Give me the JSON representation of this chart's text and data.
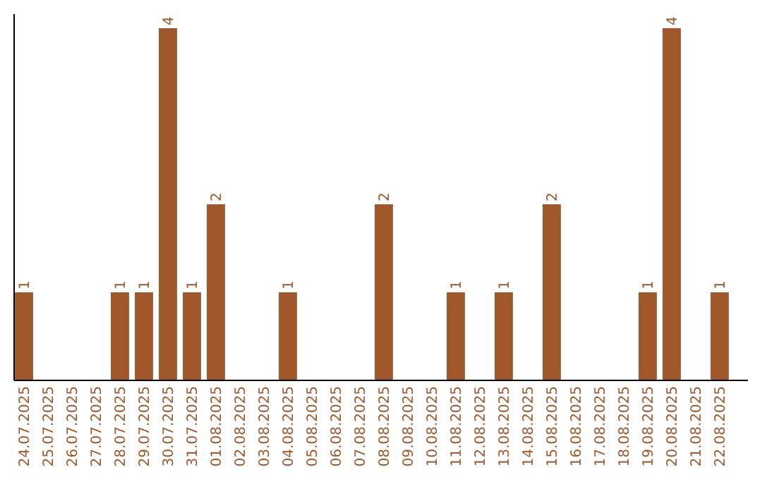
{
  "chart_data": {
    "type": "bar",
    "categories": [
      "24.07.2025",
      "25.07.2025",
      "26.07.2025",
      "27.07.2025",
      "28.07.2025",
      "29.07.2025",
      "30.07.2025",
      "31.07.2025",
      "01.08.2025",
      "02.08.2025",
      "03.08.2025",
      "04.08.2025",
      "05.08.2025",
      "06.08.2025",
      "07.08.2025",
      "08.08.2025",
      "09.08.2025",
      "10.08.2025",
      "11.08.2025",
      "12.08.2025",
      "13.08.2025",
      "14.08.2025",
      "15.08.2025",
      "16.08.2025",
      "17.08.2025",
      "18.08.2025",
      "19.08.2025",
      "20.08.2025",
      "21.08.2025",
      "22.08.2025"
    ],
    "values": [
      1,
      0,
      0,
      0,
      1,
      1,
      4,
      1,
      2,
      0,
      0,
      1,
      0,
      0,
      0,
      2,
      0,
      0,
      1,
      0,
      1,
      0,
      2,
      0,
      0,
      0,
      1,
      4,
      0,
      1
    ],
    "value_labels": [
      "1",
      null,
      null,
      null,
      "1",
      "1",
      "4",
      "1",
      "2",
      null,
      null,
      "1",
      null,
      null,
      null,
      "2",
      null,
      null,
      "1",
      null,
      "1",
      null,
      "2",
      null,
      null,
      null,
      "1",
      "4",
      null,
      "1"
    ],
    "color": "#a0582a",
    "ylim": [
      0,
      4.16
    ],
    "tick_labels": "x"
  }
}
